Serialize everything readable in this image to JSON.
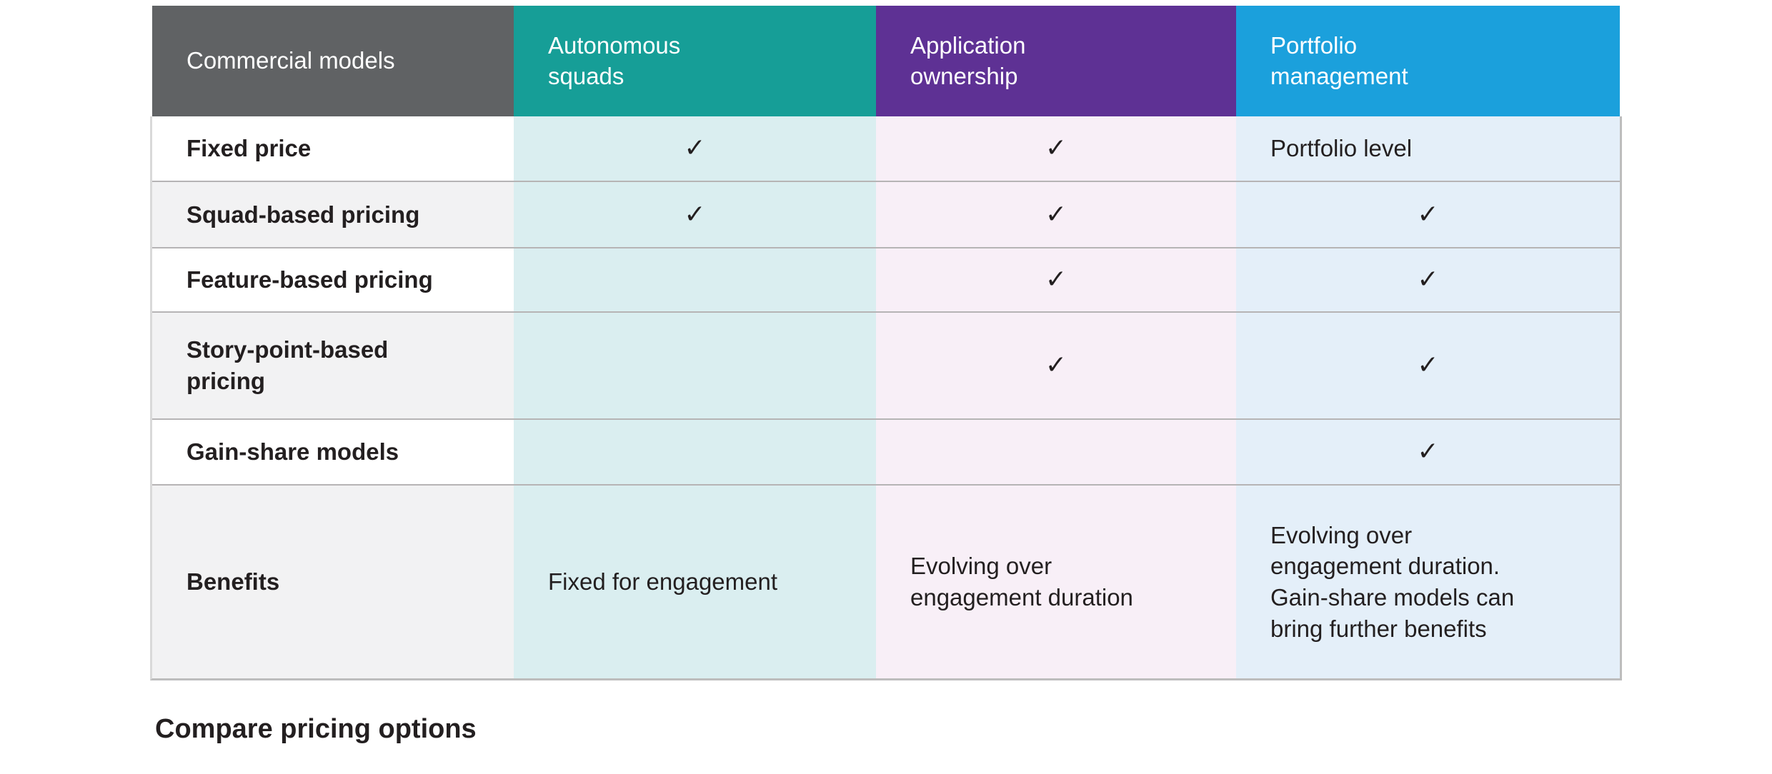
{
  "chart_data": {
    "type": "table",
    "title": "Compare pricing options",
    "columns": [
      "Commercial models",
      "Autonomous\nsquads",
      "Application\nownership",
      "Portfolio\nmanagement"
    ],
    "check_glyph": "✓",
    "rows": [
      {
        "label": "Fixed price",
        "values": [
          "✓",
          "✓",
          "Portfolio level"
        ]
      },
      {
        "label": "Squad-based pricing",
        "values": [
          "✓",
          "✓",
          "✓"
        ]
      },
      {
        "label": "Feature-based pricing",
        "values": [
          "",
          "✓",
          "✓"
        ]
      },
      {
        "label": "Story-point-based\npricing",
        "values": [
          "",
          "✓",
          "✓"
        ]
      },
      {
        "label": "Gain-share models",
        "values": [
          "",
          "",
          "✓"
        ]
      },
      {
        "label": "Benefits",
        "values": [
          "Fixed for engagement",
          "Evolving over\nengagement duration",
          "Evolving over\nengagement duration.\nGain-share models can\nbring further benefits"
        ]
      }
    ]
  },
  "colors": {
    "header_gray": "#606264",
    "header_teal": "#169e97",
    "header_purple": "#5e3194",
    "header_blue": "#1ba0dc",
    "cell_teal": "#daeef0",
    "cell_pink": "#f8eff7",
    "cell_blue": "#e4eff9",
    "cell_gray": "#f2f2f3",
    "divider": "#b6b4b5",
    "border_light": "#d9d9d9",
    "border_dark": "#bdbdbd",
    "text_dark": "#231f20"
  }
}
